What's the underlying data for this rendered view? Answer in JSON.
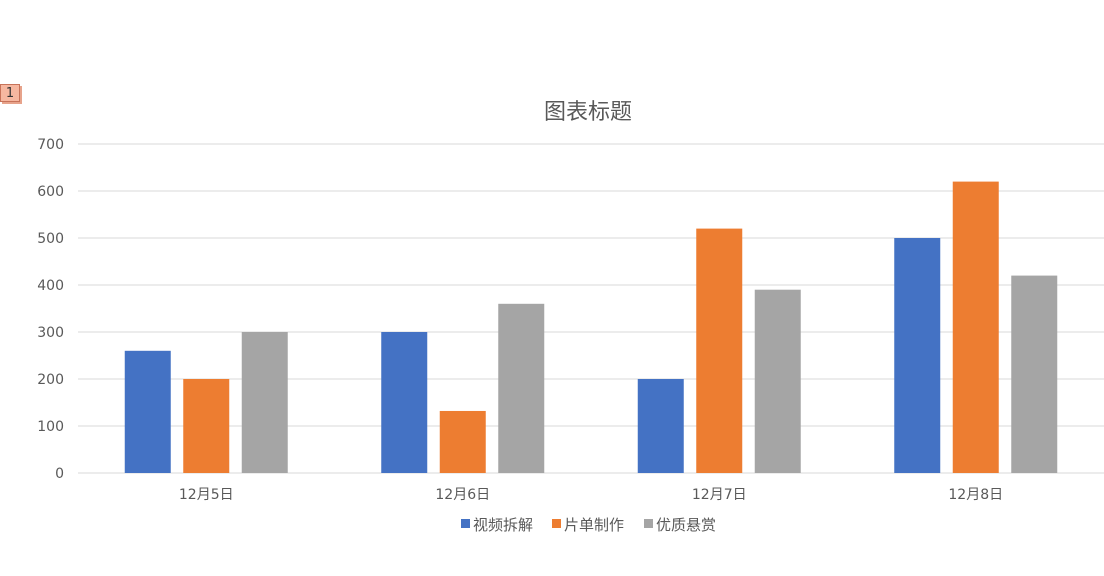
{
  "sheet_tag": "1",
  "chart_data": {
    "type": "bar",
    "title": "图表标题",
    "categories": [
      "12月5日",
      "12月6日",
      "12月7日",
      "12月8日"
    ],
    "series": [
      {
        "name": "视频拆解",
        "color": "#4472c4",
        "values": [
          260,
          300,
          200,
          500
        ]
      },
      {
        "name": "片单制作",
        "color": "#ed7d31",
        "values": [
          200,
          132,
          520,
          620
        ]
      },
      {
        "name": "优质悬赏",
        "color": "#a5a5a5",
        "values": [
          300,
          360,
          390,
          420
        ]
      }
    ],
    "ylim": [
      0,
      700
    ],
    "yticks": [
      0,
      100,
      200,
      300,
      400,
      500,
      600,
      700
    ],
    "grid": true,
    "legend_position": "bottom"
  }
}
